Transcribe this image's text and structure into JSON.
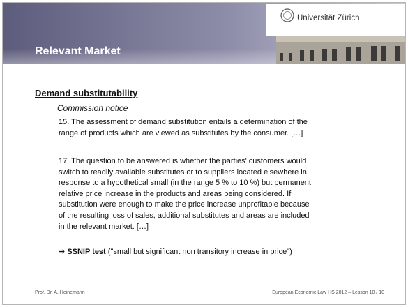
{
  "header": {
    "title": "Relevant Market",
    "logo_text": "Universität Zürich"
  },
  "body": {
    "heading": "Demand substitutability",
    "subheading": "Commission notice",
    "paragraphs": [
      {
        "lines": [
          "15. The assessment of demand substitution entails a determination of the",
          "range of products which are viewed as substitutes by the consumer. […]"
        ]
      },
      {
        "lines": [
          "17. The question to be answered is whether the parties' customers would",
          "switch to readily available substitutes or to suppliers located elsewhere in",
          "response to a hypothetical small (in the range 5 % to 10 %) but permanent",
          "relative price increase in the products and areas being considered. If",
          "substitution were enough to make the price increase unprofitable because",
          "of the resulting loss of sales, additional substitutes and areas are included",
          "in the relevant market. […]"
        ]
      }
    ],
    "conclusion": {
      "arrow": "➔",
      "bold": "SSNIP test",
      "rest": " (\"small but significant non transitory increase in price\")"
    }
  },
  "footer": {
    "author": "Prof. Dr. A. Heinemann",
    "course": "European Economic Law HS 2012 – Lesson 10 / 10"
  }
}
